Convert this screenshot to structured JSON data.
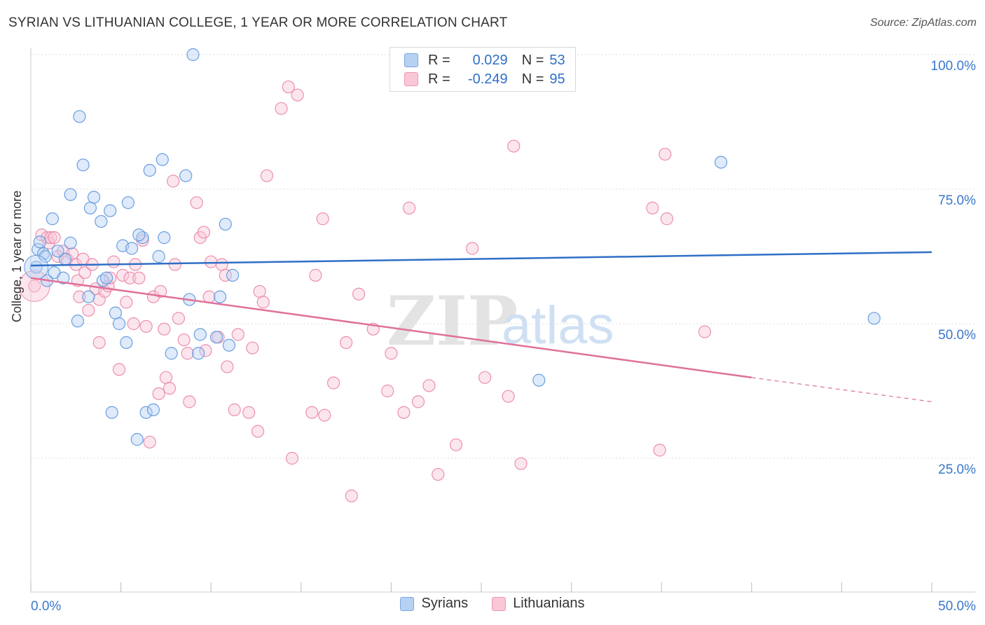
{
  "title": "SYRIAN VS LITHUANIAN COLLEGE, 1 YEAR OR MORE CORRELATION CHART",
  "source": "Source: ZipAtlas.com",
  "watermark": {
    "zip": "ZIP",
    "atlas": "atlas"
  },
  "legend": {
    "r_label": "R =",
    "n_label": "N =",
    "rows": [
      {
        "r": "0.029",
        "n": "53",
        "color": "#6a9fe0"
      },
      {
        "r": "-0.249",
        "n": "95",
        "color": "#ec8fae"
      }
    ]
  },
  "chart_data": {
    "type": "scatter",
    "title": "SYRIAN VS LITHUANIAN COLLEGE, 1 YEAR OR MORE CORRELATION CHART",
    "xlabel": "",
    "ylabel": "College, 1 year or more",
    "xlim": [
      0,
      50
    ],
    "ylim": [
      0,
      105
    ],
    "x_tick_labels": [
      "0.0%",
      "50.0%"
    ],
    "y_ticks": [
      25,
      50,
      75,
      100
    ],
    "y_tick_labels": [
      "25.0%",
      "50.0%",
      "75.0%",
      "100.0%"
    ],
    "grid": true,
    "legend_position": "bottom-center",
    "series": [
      {
        "name": "Syrians",
        "color": "#6a9fe0",
        "fill": "#b7d1f3",
        "trend": {
          "x": [
            0,
            50
          ],
          "y": [
            60.8,
            63.3
          ]
        },
        "points": [
          [
            0.3,
            60.5
          ],
          [
            0.4,
            63.8
          ],
          [
            0.5,
            65.2
          ],
          [
            0.7,
            63.0
          ],
          [
            0.8,
            62.5
          ],
          [
            0.9,
            58.0
          ],
          [
            1.2,
            69.5
          ],
          [
            1.3,
            59.5
          ],
          [
            1.8,
            58.5
          ],
          [
            1.9,
            62.0
          ],
          [
            2.2,
            74.0
          ],
          [
            2.2,
            65.0
          ],
          [
            2.7,
            88.5
          ],
          [
            2.9,
            79.5
          ],
          [
            3.2,
            55.0
          ],
          [
            3.3,
            71.5
          ],
          [
            3.5,
            73.5
          ],
          [
            3.9,
            69.0
          ],
          [
            4.0,
            58.0
          ],
          [
            4.2,
            58.5
          ],
          [
            4.4,
            71.0
          ],
          [
            4.5,
            33.5
          ],
          [
            4.7,
            52.0
          ],
          [
            4.9,
            50.0
          ],
          [
            5.1,
            64.5
          ],
          [
            5.3,
            46.5
          ],
          [
            5.4,
            72.5
          ],
          [
            5.6,
            64.0
          ],
          [
            5.9,
            28.5
          ],
          [
            6.2,
            66.0
          ],
          [
            6.4,
            33.5
          ],
          [
            6.6,
            78.5
          ],
          [
            6.8,
            34.0
          ],
          [
            7.1,
            62.5
          ],
          [
            7.3,
            80.5
          ],
          [
            7.4,
            66.0
          ],
          [
            7.8,
            44.5
          ],
          [
            8.6,
            77.5
          ],
          [
            8.8,
            54.5
          ],
          [
            9.0,
            100.0
          ],
          [
            9.3,
            44.5
          ],
          [
            9.4,
            48.0
          ],
          [
            10.3,
            47.5
          ],
          [
            10.5,
            55.0
          ],
          [
            10.8,
            68.5
          ],
          [
            11.0,
            46.0
          ],
          [
            11.2,
            59.0
          ],
          [
            28.2,
            39.5
          ],
          [
            38.3,
            80.0
          ],
          [
            46.8,
            51.0
          ],
          [
            1.5,
            63.5
          ],
          [
            2.6,
            50.5
          ],
          [
            6.0,
            66.5
          ]
        ]
      },
      {
        "name": "Lithuanians",
        "color": "#ec8fae",
        "fill": "#f9c7d6",
        "trend": {
          "x": [
            0,
            40
          ],
          "y": [
            58.5,
            40.0
          ],
          "dash_x": [
            40,
            50
          ],
          "dash_y": [
            40.0,
            35.5
          ]
        },
        "points": [
          [
            0.2,
            57.0
          ],
          [
            0.6,
            66.5
          ],
          [
            0.9,
            66.0
          ],
          [
            1.0,
            65.0
          ],
          [
            1.1,
            66.0
          ],
          [
            1.3,
            66.0
          ],
          [
            1.5,
            62.5
          ],
          [
            1.8,
            63.5
          ],
          [
            2.0,
            62.0
          ],
          [
            2.3,
            63.0
          ],
          [
            2.5,
            61.0
          ],
          [
            2.6,
            58.0
          ],
          [
            2.7,
            55.0
          ],
          [
            2.9,
            62.0
          ],
          [
            3.0,
            59.5
          ],
          [
            3.2,
            52.5
          ],
          [
            3.4,
            61.0
          ],
          [
            3.6,
            56.5
          ],
          [
            3.8,
            54.5
          ],
          [
            3.8,
            46.5
          ],
          [
            4.1,
            56.0
          ],
          [
            4.3,
            57.0
          ],
          [
            4.4,
            58.5
          ],
          [
            4.6,
            61.5
          ],
          [
            4.9,
            41.5
          ],
          [
            5.1,
            59.0
          ],
          [
            5.3,
            54.0
          ],
          [
            5.5,
            58.5
          ],
          [
            5.7,
            50.0
          ],
          [
            5.8,
            61.0
          ],
          [
            6.0,
            58.5
          ],
          [
            6.2,
            65.5
          ],
          [
            6.4,
            49.5
          ],
          [
            6.6,
            28.0
          ],
          [
            6.8,
            55.0
          ],
          [
            7.1,
            37.0
          ],
          [
            7.2,
            56.0
          ],
          [
            7.4,
            49.0
          ],
          [
            7.5,
            40.0
          ],
          [
            7.7,
            38.0
          ],
          [
            7.9,
            76.5
          ],
          [
            8.0,
            61.0
          ],
          [
            8.2,
            51.0
          ],
          [
            8.5,
            47.0
          ],
          [
            8.7,
            44.5
          ],
          [
            8.8,
            35.5
          ],
          [
            9.2,
            72.5
          ],
          [
            9.4,
            66.0
          ],
          [
            9.6,
            67.0
          ],
          [
            9.7,
            45.0
          ],
          [
            9.9,
            55.0
          ],
          [
            10.0,
            61.5
          ],
          [
            10.4,
            47.5
          ],
          [
            10.6,
            61.0
          ],
          [
            10.8,
            59.0
          ],
          [
            10.9,
            42.0
          ],
          [
            11.3,
            34.0
          ],
          [
            11.5,
            48.0
          ],
          [
            12.1,
            33.5
          ],
          [
            12.3,
            45.5
          ],
          [
            12.6,
            30.0
          ],
          [
            12.7,
            56.0
          ],
          [
            12.9,
            54.0
          ],
          [
            13.1,
            77.5
          ],
          [
            13.9,
            90.0
          ],
          [
            14.3,
            94.0
          ],
          [
            14.5,
            25.0
          ],
          [
            14.8,
            92.5
          ],
          [
            15.6,
            33.5
          ],
          [
            15.8,
            59.0
          ],
          [
            16.2,
            69.5
          ],
          [
            16.3,
            33.0
          ],
          [
            16.8,
            39.0
          ],
          [
            17.5,
            46.5
          ],
          [
            17.8,
            18.0
          ],
          [
            18.2,
            55.5
          ],
          [
            19.0,
            49.0
          ],
          [
            19.8,
            37.5
          ],
          [
            20.0,
            44.5
          ],
          [
            20.7,
            33.5
          ],
          [
            21.0,
            71.5
          ],
          [
            21.5,
            35.5
          ],
          [
            22.1,
            38.5
          ],
          [
            22.6,
            22.0
          ],
          [
            23.6,
            27.5
          ],
          [
            24.5,
            64.0
          ],
          [
            25.2,
            40.0
          ],
          [
            26.5,
            36.5
          ],
          [
            26.8,
            83.0
          ],
          [
            27.2,
            24.0
          ],
          [
            34.5,
            71.5
          ],
          [
            34.9,
            26.5
          ],
          [
            35.2,
            81.5
          ],
          [
            35.3,
            69.5
          ],
          [
            37.4,
            48.5
          ]
        ]
      }
    ]
  },
  "bottom_legend": [
    "Syrians",
    "Lithuanians"
  ]
}
